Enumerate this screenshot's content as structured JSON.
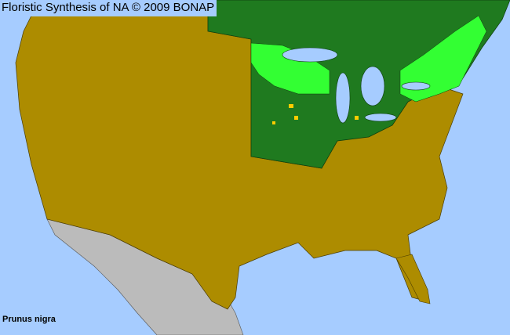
{
  "header": {
    "title": "Floristic Synthesis of NA © 2009 BONAP"
  },
  "species": {
    "name": "Prunus nigra"
  },
  "legend_colors": {
    "ocean": "#a6ccff",
    "species_absent": "#ad8c00",
    "species_present_in_state": "#1f7a1f",
    "present_in_county": "#33ff33",
    "rare": "#ffcc00",
    "outside_region": "#bbbbbb"
  }
}
